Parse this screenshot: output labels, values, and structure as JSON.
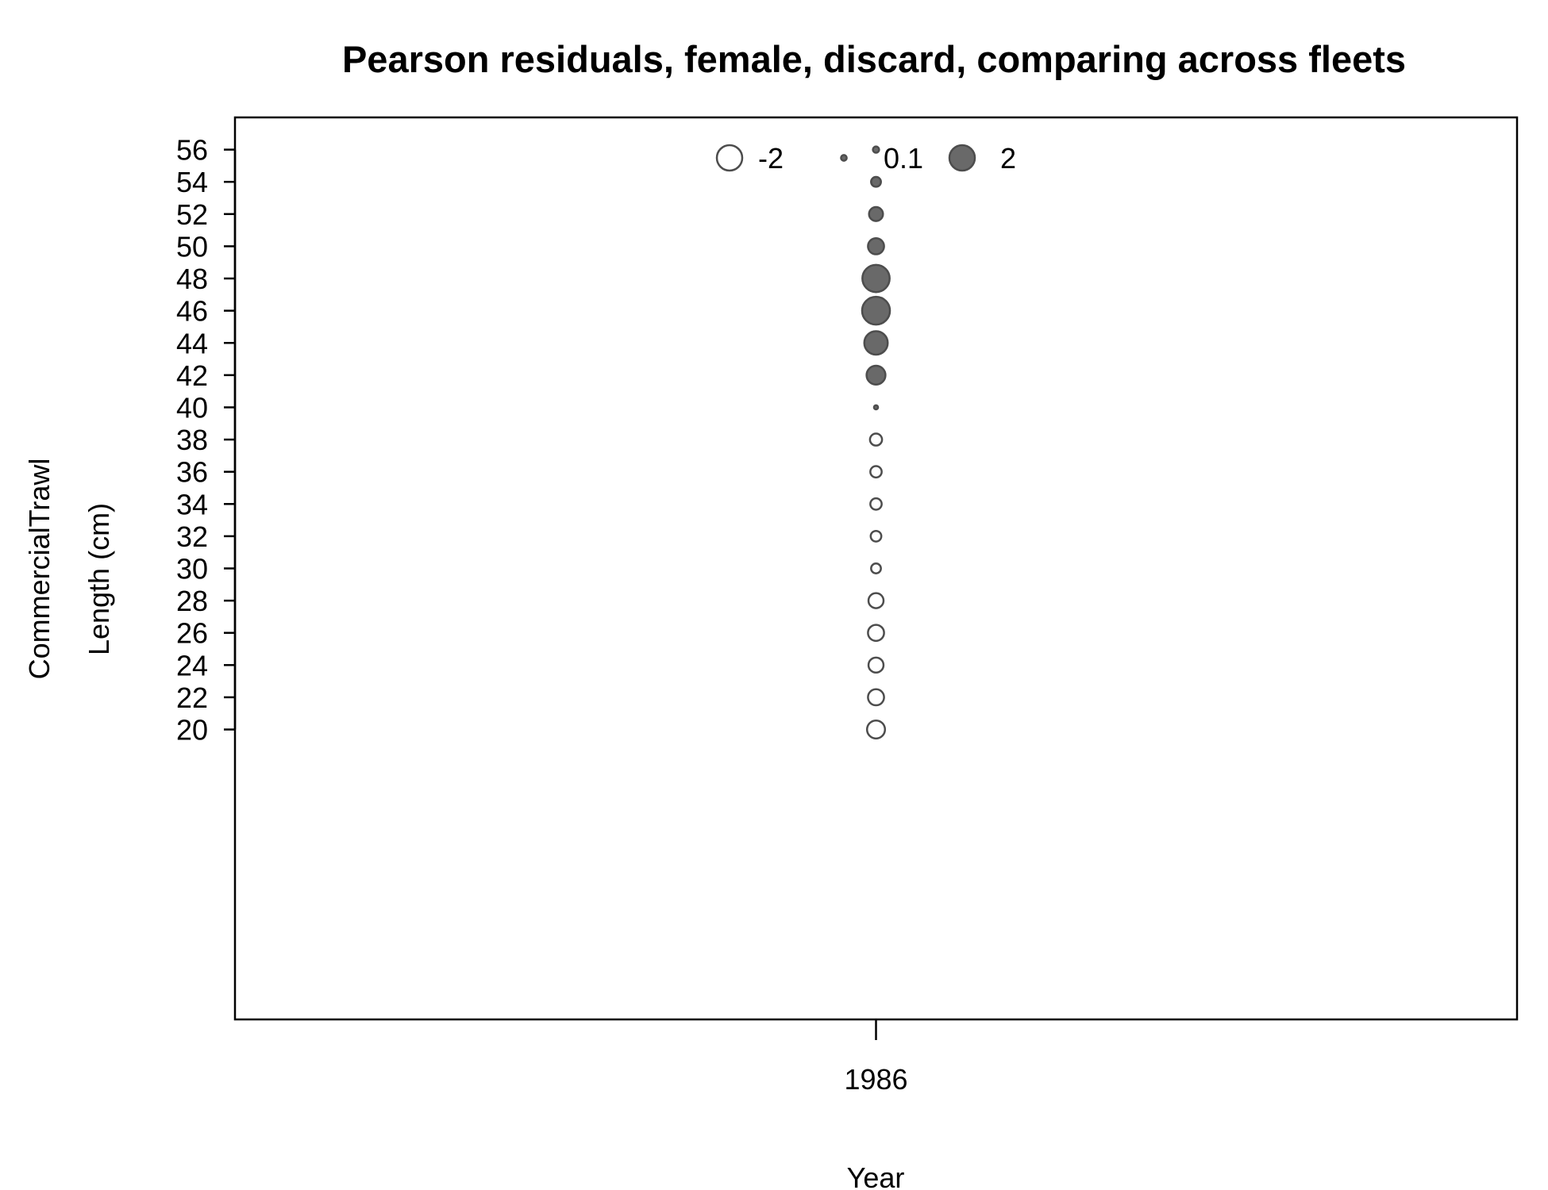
{
  "chart_data": {
    "type": "scatter",
    "subtype": "bubble",
    "title": "Pearson residuals, female, discard, comparing across fleets",
    "xlabel": "Year",
    "ylabel_lines": [
      "CommercialTrawl",
      "Length (cm)"
    ],
    "xlim": [
      1985.5,
      1986.5
    ],
    "ylim": [
      2,
      58
    ],
    "x_ticks": [
      1986
    ],
    "y_ticks": [
      20,
      22,
      24,
      26,
      28,
      30,
      32,
      34,
      36,
      38,
      40,
      42,
      44,
      46,
      48,
      50,
      52,
      54,
      56
    ],
    "legend": {
      "placement": "top-center",
      "entries": [
        {
          "label": "-2",
          "value": -2
        },
        {
          "label": "0.1",
          "value": 0.1
        },
        {
          "label": "2",
          "value": 2
        }
      ]
    },
    "colors": {
      "positive_fill": "#595959",
      "negative_fill": "#ffffff",
      "stroke": "#4d4d4d"
    },
    "points": [
      {
        "x": 1986,
        "y": 20,
        "residual": -1.0
      },
      {
        "x": 1986,
        "y": 22,
        "residual": -0.8
      },
      {
        "x": 1986,
        "y": 24,
        "residual": -0.7
      },
      {
        "x": 1986,
        "y": 26,
        "residual": -0.8
      },
      {
        "x": 1986,
        "y": 28,
        "residual": -0.7
      },
      {
        "x": 1986,
        "y": 30,
        "residual": -0.3
      },
      {
        "x": 1986,
        "y": 32,
        "residual": -0.35
      },
      {
        "x": 1986,
        "y": 34,
        "residual": -0.4
      },
      {
        "x": 1986,
        "y": 36,
        "residual": -0.4
      },
      {
        "x": 1986,
        "y": 38,
        "residual": -0.45
      },
      {
        "x": 1986,
        "y": 40,
        "residual": 0.05
      },
      {
        "x": 1986,
        "y": 42,
        "residual": 1.1
      },
      {
        "x": 1986,
        "y": 44,
        "residual": 1.7
      },
      {
        "x": 1986,
        "y": 46,
        "residual": 2.4
      },
      {
        "x": 1986,
        "y": 48,
        "residual": 2.3
      },
      {
        "x": 1986,
        "y": 50,
        "residual": 0.8
      },
      {
        "x": 1986,
        "y": 52,
        "residual": 0.6
      },
      {
        "x": 1986,
        "y": 54,
        "residual": 0.3
      },
      {
        "x": 1986,
        "y": 56,
        "residual": 0.12
      }
    ]
  }
}
